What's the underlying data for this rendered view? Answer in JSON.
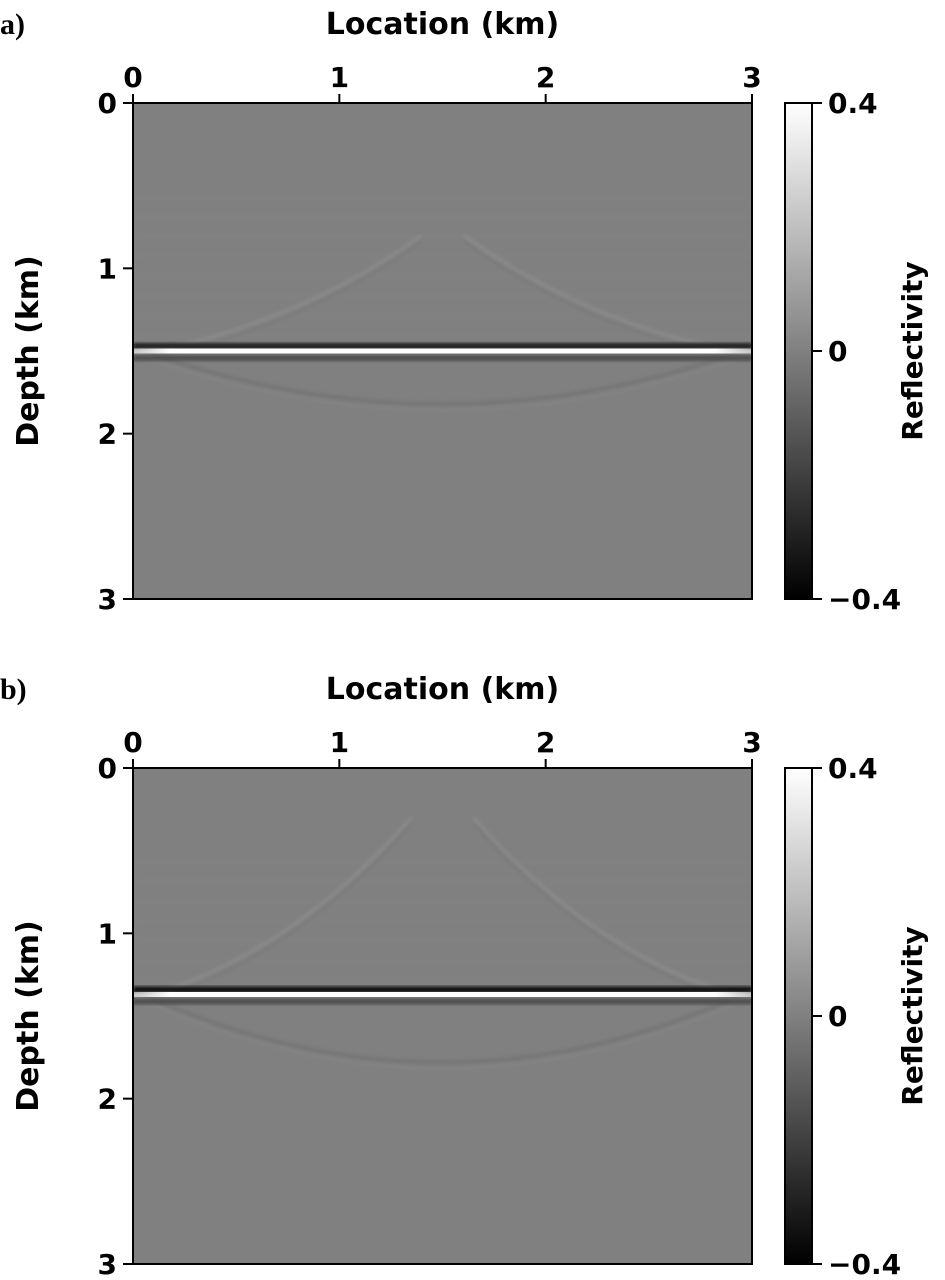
{
  "chart_data": [
    {
      "panel_label": "a)",
      "type": "heatmap",
      "xlabel": "Location (km)",
      "ylabel": "Depth (km)",
      "xlim": [
        0,
        3
      ],
      "ylim": [
        0,
        3
      ],
      "x_axis_position": "top",
      "y_axis_inverted": true,
      "xticks": [
        "0",
        "1",
        "2",
        "3"
      ],
      "yticks": [
        "0",
        "1",
        "2",
        "3"
      ],
      "colormap": "gray",
      "colorbar": {
        "label": "Reflectivity",
        "min": -0.4,
        "max": 0.4,
        "ticks": [
          "0.4",
          "0",
          "−0.4"
        ]
      },
      "background_value": 0,
      "reflector": {
        "depth_km": 1.5,
        "peak_value": 0.4,
        "trough_above_value": -0.3,
        "trough_below_value": -0.15
      },
      "artifacts": [
        {
          "kind": "migration-swing",
          "from_x_km": 0.1,
          "to_x_km": 1.4,
          "depth_start_km": 1.5,
          "depth_end_km": 0.8,
          "value": 0.04
        },
        {
          "kind": "migration-swing",
          "from_x_km": 2.9,
          "to_x_km": 1.6,
          "depth_start_km": 1.5,
          "depth_end_km": 0.8,
          "value": 0.04
        },
        {
          "kind": "smile",
          "from_x_km": 0.05,
          "to_x_km": 2.95,
          "depth_edge_km": 1.5,
          "depth_center_km": 1.82,
          "value": -0.04
        }
      ]
    },
    {
      "panel_label": "b)",
      "type": "heatmap",
      "xlabel": "Location (km)",
      "ylabel": "Depth (km)",
      "xlim": [
        0,
        3
      ],
      "ylim": [
        0,
        3
      ],
      "x_axis_position": "top",
      "y_axis_inverted": true,
      "xticks": [
        "0",
        "1",
        "2",
        "3"
      ],
      "yticks": [
        "0",
        "1",
        "2",
        "3"
      ],
      "colormap": "gray",
      "colorbar": {
        "label": "Reflectivity",
        "min": -0.4,
        "max": 0.4,
        "ticks": [
          "0.4",
          "0",
          "−0.4"
        ]
      },
      "background_value": 0,
      "reflector": {
        "depth_km": 1.37,
        "peak_value": 0.4,
        "trough_above_value": -0.35,
        "trough_below_value": -0.15
      },
      "artifacts": [
        {
          "kind": "migration-swing",
          "from_x_km": 0.1,
          "to_x_km": 1.35,
          "depth_start_km": 1.37,
          "depth_end_km": 0.3,
          "value": 0.04
        },
        {
          "kind": "migration-swing",
          "from_x_km": 2.9,
          "to_x_km": 1.65,
          "depth_start_km": 1.37,
          "depth_end_km": 0.3,
          "value": 0.04
        },
        {
          "kind": "smile",
          "from_x_km": 0.05,
          "to_x_km": 2.95,
          "depth_edge_km": 1.37,
          "depth_center_km": 1.78,
          "value": -0.04
        }
      ]
    }
  ]
}
